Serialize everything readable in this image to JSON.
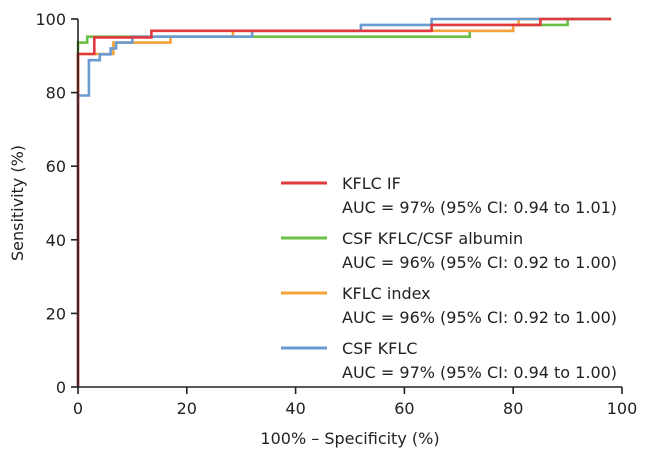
{
  "chart_data": {
    "type": "line",
    "title": "",
    "xlabel": "100% – Specificity (%)",
    "ylabel": "Sensitivity (%)",
    "xlim": [
      0,
      100
    ],
    "ylim": [
      0,
      100
    ],
    "x_ticks": [
      "0",
      "20",
      "40",
      "60",
      "80",
      "100"
    ],
    "y_ticks": [
      "0",
      "20",
      "40",
      "60",
      "80",
      "100"
    ],
    "grid": false,
    "legend_position": "center-right",
    "series": [
      {
        "name": "KFLC IF",
        "auc_label": "AUC = 97% (95% CI: 0.94 to 1.01)",
        "color": "#e03a3e",
        "points": [
          [
            0,
            0
          ],
          [
            0,
            90.5
          ],
          [
            3,
            90.5
          ],
          [
            3,
            95
          ],
          [
            13.5,
            95
          ],
          [
            13.5,
            96.8
          ],
          [
            65,
            96.8
          ],
          [
            65,
            98.4
          ],
          [
            85,
            98.4
          ],
          [
            85,
            100
          ],
          [
            98,
            100
          ]
        ]
      },
      {
        "name": "CSF KFLC/CSF albumin",
        "auc_label": "AUC = 96% (95% CI: 0.92 to 1.00)",
        "color": "#6bbf45",
        "points": [
          [
            0,
            0
          ],
          [
            0,
            93.6
          ],
          [
            1.7,
            93.6
          ],
          [
            1.7,
            95.2
          ],
          [
            72,
            95.2
          ],
          [
            72,
            96.8
          ],
          [
            80,
            96.8
          ],
          [
            80,
            98.4
          ],
          [
            90,
            98.4
          ],
          [
            90,
            100
          ],
          [
            98,
            100
          ]
        ]
      },
      {
        "name": "KFLC index",
        "auc_label": "AUC = 96% (95% CI: 0.92 to 1.00)",
        "color": "#f5a23a",
        "points": [
          [
            0,
            0
          ],
          [
            0,
            90.5
          ],
          [
            6.5,
            90.5
          ],
          [
            6.5,
            93.6
          ],
          [
            17,
            93.6
          ],
          [
            17,
            95.2
          ],
          [
            28.5,
            95.2
          ],
          [
            28.5,
            96.8
          ],
          [
            80,
            96.8
          ],
          [
            80,
            98.4
          ],
          [
            81,
            98.4
          ],
          [
            81,
            100
          ],
          [
            98,
            100
          ]
        ]
      },
      {
        "name": "CSF KFLC",
        "auc_label": "AUC = 97% (95% CI: 0.94 to 1.00)",
        "color": "#6a9ad2",
        "points": [
          [
            0,
            0
          ],
          [
            0,
            79.2
          ],
          [
            2,
            79.2
          ],
          [
            2,
            88.8
          ],
          [
            4,
            88.8
          ],
          [
            4,
            90.4
          ],
          [
            6,
            90.4
          ],
          [
            6,
            92
          ],
          [
            7,
            92
          ],
          [
            7,
            93.6
          ],
          [
            10,
            93.6
          ],
          [
            10,
            95.2
          ],
          [
            32,
            95.2
          ],
          [
            32,
            96.8
          ],
          [
            52,
            96.8
          ],
          [
            52,
            98.4
          ],
          [
            65,
            98.4
          ],
          [
            65,
            100
          ],
          [
            98,
            100
          ]
        ]
      }
    ]
  }
}
